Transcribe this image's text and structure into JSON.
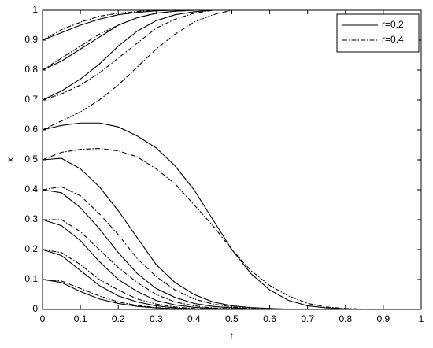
{
  "chart_data": {
    "type": "line",
    "xlabel": "t",
    "ylabel": "x",
    "x": [
      0,
      0.05,
      0.1,
      0.15,
      0.2,
      0.25,
      0.3,
      0.35,
      0.4,
      0.45,
      0.5,
      0.55,
      0.6,
      0.65,
      0.7,
      0.75,
      0.8,
      0.85,
      0.9,
      0.95,
      1
    ],
    "xlim": [
      0,
      1
    ],
    "ylim": [
      0,
      1
    ],
    "xticks": [
      0,
      0.1,
      0.2,
      0.3,
      0.4,
      0.5,
      0.6,
      0.7,
      0.8,
      0.9,
      1
    ],
    "yticks": [
      0,
      0.1,
      0.2,
      0.3,
      0.4,
      0.5,
      0.6,
      0.7,
      0.8,
      0.9,
      1
    ],
    "grid": false,
    "legend": "upper right",
    "series": [
      {
        "name": "r=0.2",
        "color": "#000000",
        "style": "solid",
        "curves": [
          [
            0.9,
            0.925,
            0.95,
            0.97,
            0.985,
            0.993,
            0.998,
            1,
            1,
            1,
            1,
            1,
            1,
            1,
            1,
            1,
            1,
            1,
            1,
            1,
            1
          ],
          [
            0.8,
            0.83,
            0.87,
            0.91,
            0.95,
            0.975,
            0.99,
            0.997,
            1,
            1,
            1,
            1,
            1,
            1,
            1,
            1,
            1,
            1,
            1,
            1,
            1
          ],
          [
            0.7,
            0.73,
            0.77,
            0.82,
            0.88,
            0.93,
            0.965,
            0.985,
            0.995,
            1,
            1,
            1,
            1,
            1,
            1,
            1,
            1,
            1,
            1,
            1,
            1
          ],
          [
            0.6,
            0.615,
            0.623,
            0.623,
            0.61,
            0.58,
            0.54,
            0.48,
            0.4,
            0.3,
            0.2,
            0.12,
            0.065,
            0.03,
            0.012,
            0.005,
            0.002,
            0,
            0,
            0,
            0
          ],
          [
            0.5,
            0.505,
            0.47,
            0.41,
            0.33,
            0.24,
            0.15,
            0.09,
            0.05,
            0.025,
            0.012,
            0.006,
            0.003,
            0.001,
            0,
            0,
            0,
            0,
            0,
            0,
            0
          ],
          [
            0.4,
            0.39,
            0.34,
            0.27,
            0.19,
            0.12,
            0.07,
            0.04,
            0.02,
            0.01,
            0.005,
            0.002,
            0,
            0,
            0,
            0,
            0,
            0,
            0,
            0,
            0
          ],
          [
            0.3,
            0.28,
            0.23,
            0.16,
            0.1,
            0.06,
            0.03,
            0.015,
            0.007,
            0.003,
            0.001,
            0,
            0,
            0,
            0,
            0,
            0,
            0,
            0,
            0,
            0
          ],
          [
            0.2,
            0.18,
            0.13,
            0.08,
            0.045,
            0.025,
            0.012,
            0.005,
            0.002,
            0,
            0,
            0,
            0,
            0,
            0,
            0,
            0,
            0,
            0,
            0,
            0
          ],
          [
            0.1,
            0.09,
            0.06,
            0.035,
            0.02,
            0.01,
            0.005,
            0.002,
            0,
            0,
            0,
            0,
            0,
            0,
            0,
            0,
            0,
            0,
            0,
            0,
            0
          ]
        ]
      },
      {
        "name": "r=0.4",
        "color": "#000000",
        "style": "dashdot",
        "curves": [
          [
            0.9,
            0.935,
            0.96,
            0.98,
            0.99,
            0.996,
            1,
            1,
            1,
            1,
            1,
            1,
            1,
            1,
            1,
            1,
            1,
            1,
            1,
            1,
            1
          ],
          [
            0.8,
            0.84,
            0.88,
            0.92,
            0.95,
            0.975,
            0.99,
            0.997,
            1,
            1,
            1,
            1,
            1,
            1,
            1,
            1,
            1,
            1,
            1,
            1,
            1
          ],
          [
            0.7,
            0.72,
            0.75,
            0.79,
            0.84,
            0.89,
            0.94,
            0.97,
            0.99,
            1,
            1,
            1,
            1,
            1,
            1,
            1,
            1,
            1,
            1,
            1,
            1
          ],
          [
            0.6,
            0.63,
            0.66,
            0.7,
            0.75,
            0.81,
            0.87,
            0.92,
            0.96,
            0.985,
            1,
            1,
            1,
            1,
            1,
            1,
            1,
            1,
            1,
            1,
            1
          ],
          [
            0.5,
            0.525,
            0.535,
            0.538,
            0.53,
            0.51,
            0.47,
            0.42,
            0.35,
            0.28,
            0.2,
            0.13,
            0.08,
            0.045,
            0.02,
            0.008,
            0.003,
            0.001,
            0,
            0,
            0
          ],
          [
            0.4,
            0.41,
            0.38,
            0.32,
            0.25,
            0.17,
            0.11,
            0.065,
            0.035,
            0.018,
            0.008,
            0.003,
            0.001,
            0,
            0,
            0,
            0,
            0,
            0,
            0,
            0
          ],
          [
            0.3,
            0.3,
            0.26,
            0.2,
            0.14,
            0.09,
            0.05,
            0.025,
            0.012,
            0.005,
            0.002,
            0,
            0,
            0,
            0,
            0,
            0,
            0,
            0,
            0,
            0
          ],
          [
            0.2,
            0.19,
            0.15,
            0.1,
            0.065,
            0.035,
            0.018,
            0.008,
            0.003,
            0.001,
            0,
            0,
            0,
            0,
            0,
            0,
            0,
            0,
            0,
            0,
            0
          ],
          [
            0.1,
            0.095,
            0.07,
            0.045,
            0.025,
            0.013,
            0.006,
            0.002,
            0.001,
            0,
            0,
            0,
            0,
            0,
            0,
            0,
            0,
            0,
            0,
            0,
            0
          ]
        ]
      }
    ]
  }
}
